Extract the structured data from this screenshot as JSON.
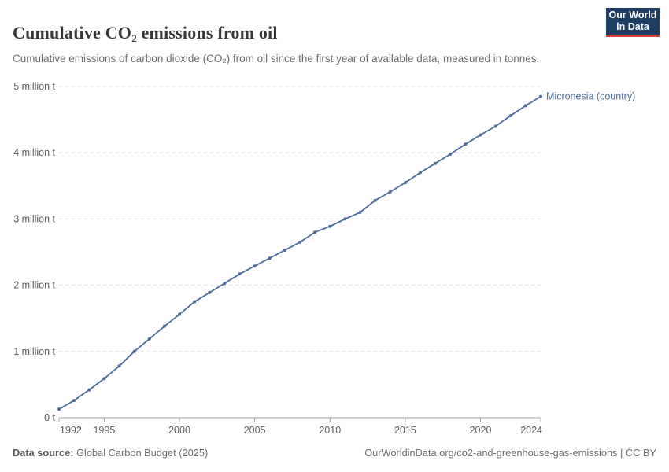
{
  "header": {
    "title": "Cumulative CO₂ emissions from oil",
    "subtitle": "Cumulative emissions of carbon dioxide (CO₂) from oil since the first year of available data, measured in tonnes.",
    "logo": {
      "line1": "Our World",
      "line2": "in Data",
      "bg_color": "#1d3d63",
      "stripe_color": "#d63c39"
    }
  },
  "chart_data": {
    "type": "line",
    "title": "Cumulative CO₂ emissions from oil",
    "xlabel": "",
    "ylabel": "tonnes",
    "xlim": [
      1992,
      2024
    ],
    "ylim": [
      0,
      5000000
    ],
    "grid": "horizontal-dashed",
    "legend_position": "end-of-line-label",
    "x_ticks": [
      1992,
      1995,
      2000,
      2005,
      2010,
      2015,
      2020,
      2024
    ],
    "y_ticks": [
      {
        "value": 0,
        "label": "0 t"
      },
      {
        "value": 1000000,
        "label": "1 million t"
      },
      {
        "value": 2000000,
        "label": "2 million t"
      },
      {
        "value": 3000000,
        "label": "3 million t"
      },
      {
        "value": 4000000,
        "label": "4 million t"
      },
      {
        "value": 5000000,
        "label": "5 million t"
      }
    ],
    "series": [
      {
        "name": "Micronesia (country)",
        "color": "#4c6a9c",
        "x": [
          1992,
          1993,
          1994,
          1995,
          1996,
          1997,
          1998,
          1999,
          2000,
          2001,
          2002,
          2003,
          2004,
          2005,
          2006,
          2007,
          2008,
          2009,
          2010,
          2011,
          2012,
          2013,
          2014,
          2015,
          2016,
          2017,
          2018,
          2019,
          2020,
          2021,
          2022,
          2023,
          2024
        ],
        "values": [
          130000,
          260000,
          420000,
          590000,
          780000,
          1000000,
          1190000,
          1380000,
          1560000,
          1750000,
          1890000,
          2030000,
          2170000,
          2290000,
          2410000,
          2530000,
          2650000,
          2800000,
          2890000,
          3000000,
          3100000,
          3280000,
          3410000,
          3550000,
          3700000,
          3840000,
          3980000,
          4130000,
          4270000,
          4400000,
          4560000,
          4710000,
          4850000
        ]
      }
    ],
    "style": {
      "grid_color": "#dcdcdc",
      "axis_color": "#a0a0a0",
      "tick_label_color": "#5b5b5b"
    }
  },
  "footer": {
    "source_label": "Data source:",
    "source_value": " Global Carbon Budget (2025)",
    "credit": "OurWorldinData.org/co2-and-greenhouse-gas-emissions | CC BY"
  }
}
